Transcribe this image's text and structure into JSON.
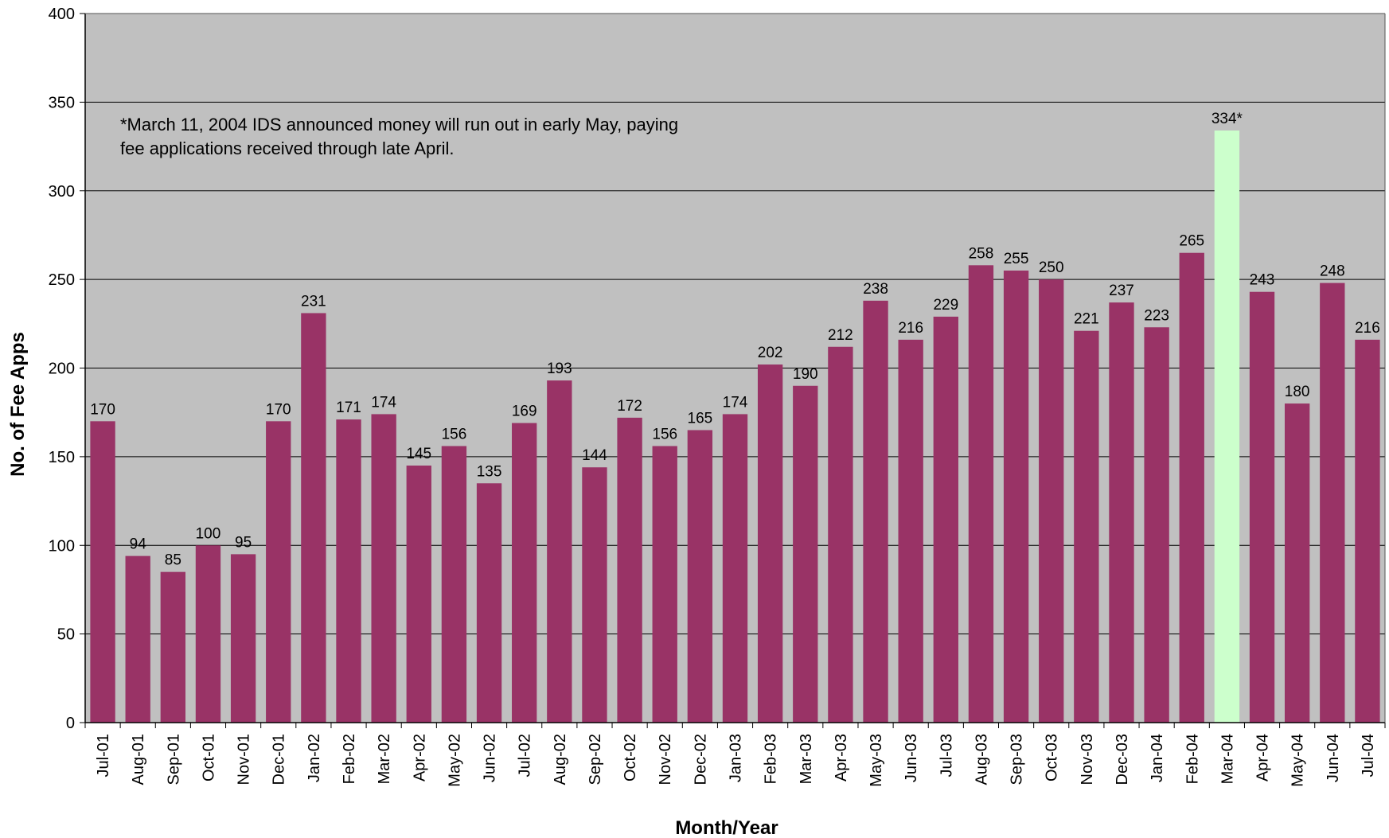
{
  "chart_data": {
    "type": "bar",
    "title": "",
    "xlabel": "Month/Year",
    "ylabel": "No. of Fee Apps",
    "ylim": [
      0,
      400
    ],
    "yticks": [
      "0",
      "50",
      "100",
      "150",
      "200",
      "250",
      "300",
      "350",
      "400"
    ],
    "grid": true,
    "categories": [
      "Jul-01",
      "Aug-01",
      "Sep-01",
      "Oct-01",
      "Nov-01",
      "Dec-01",
      "Jan-02",
      "Feb-02",
      "Mar-02",
      "Apr-02",
      "May-02",
      "Jun-02",
      "Jul-02",
      "Aug-02",
      "Sep-02",
      "Oct-02",
      "Nov-02",
      "Dec-02",
      "Jan-03",
      "Feb-03",
      "Mar-03",
      "Apr-03",
      "May-03",
      "Jun-03",
      "Jul-03",
      "Aug-03",
      "Sep-03",
      "Oct-03",
      "Nov-03",
      "Dec-03",
      "Jan-04",
      "Feb-04",
      "Mar-04",
      "Apr-04",
      "May-04",
      "Jun-04",
      "Jul-04"
    ],
    "values": [
      170,
      94,
      85,
      100,
      95,
      170,
      231,
      171,
      174,
      145,
      156,
      135,
      169,
      193,
      144,
      172,
      156,
      165,
      174,
      202,
      190,
      212,
      238,
      216,
      229,
      258,
      255,
      250,
      221,
      237,
      223,
      265,
      334,
      243,
      180,
      248,
      216
    ],
    "value_labels": [
      "170",
      "94",
      "85",
      "100",
      "95",
      "170",
      "231",
      "171",
      "174",
      "145",
      "156",
      "135",
      "169",
      "193",
      "144",
      "172",
      "156",
      "165",
      "174",
      "202",
      "190",
      "212",
      "238",
      "216",
      "229",
      "258",
      "255",
      "250",
      "221",
      "237",
      "223",
      "265",
      "334*",
      "243",
      "180",
      "248",
      "216"
    ],
    "highlight_index": 32,
    "annotation": [
      "*March 11, 2004 IDS announced money will run out in early May, paying",
      "fee applications received through late April."
    ],
    "colors": {
      "bar": "#993366",
      "highlight": "#ccffcc",
      "plot_background": "#c0c0c0",
      "gridline": "#000000"
    }
  }
}
